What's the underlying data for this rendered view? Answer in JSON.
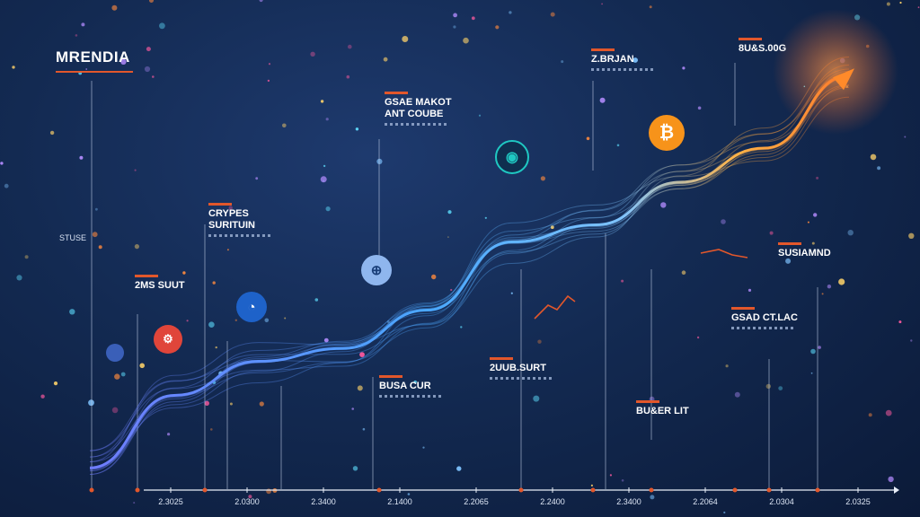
{
  "chart_data": {
    "type": "line",
    "title": "MRENDIA",
    "ylabel": "STUSE",
    "ticks": [
      "2.3025",
      "2.0300",
      "2.3400",
      "2.1400",
      "2.2065",
      "2.2400",
      "2.3400",
      "2.2064",
      "2.0304",
      "2.0325"
    ],
    "series": [
      {
        "values": [
          0.05,
          0.22,
          0.3,
          0.33,
          0.42,
          0.58,
          0.62,
          0.72,
          0.8,
          0.97
        ]
      }
    ],
    "annotations": [
      {
        "text": "CRYPES\nSURITUIN"
      },
      {
        "text": "2MS SUUT"
      },
      {
        "text": "GSAE MAKOT\nANT COUBE"
      },
      {
        "text": "BUSA CUR"
      },
      {
        "text": "2UUB.SURT"
      },
      {
        "text": "Z.BRJAN"
      },
      {
        "text": "BU&ER LIT"
      },
      {
        "text": "8U&S.00G"
      },
      {
        "text": "SUSIAMND"
      },
      {
        "text": "GSAD CT.LAC"
      }
    ]
  },
  "icons": {
    "ring": "ring-icon",
    "coin_a": "coin-icon",
    "coin_b": "coin-icon",
    "globe": "globe-icon",
    "bitcoin": "bitcoin-icon",
    "arrow": "arrow-up-right-icon"
  },
  "colors": {
    "accent": "#e2572b",
    "wave": "#4aa8ff",
    "highlight": "#ffb347",
    "bitcoin": "#f7931a"
  }
}
